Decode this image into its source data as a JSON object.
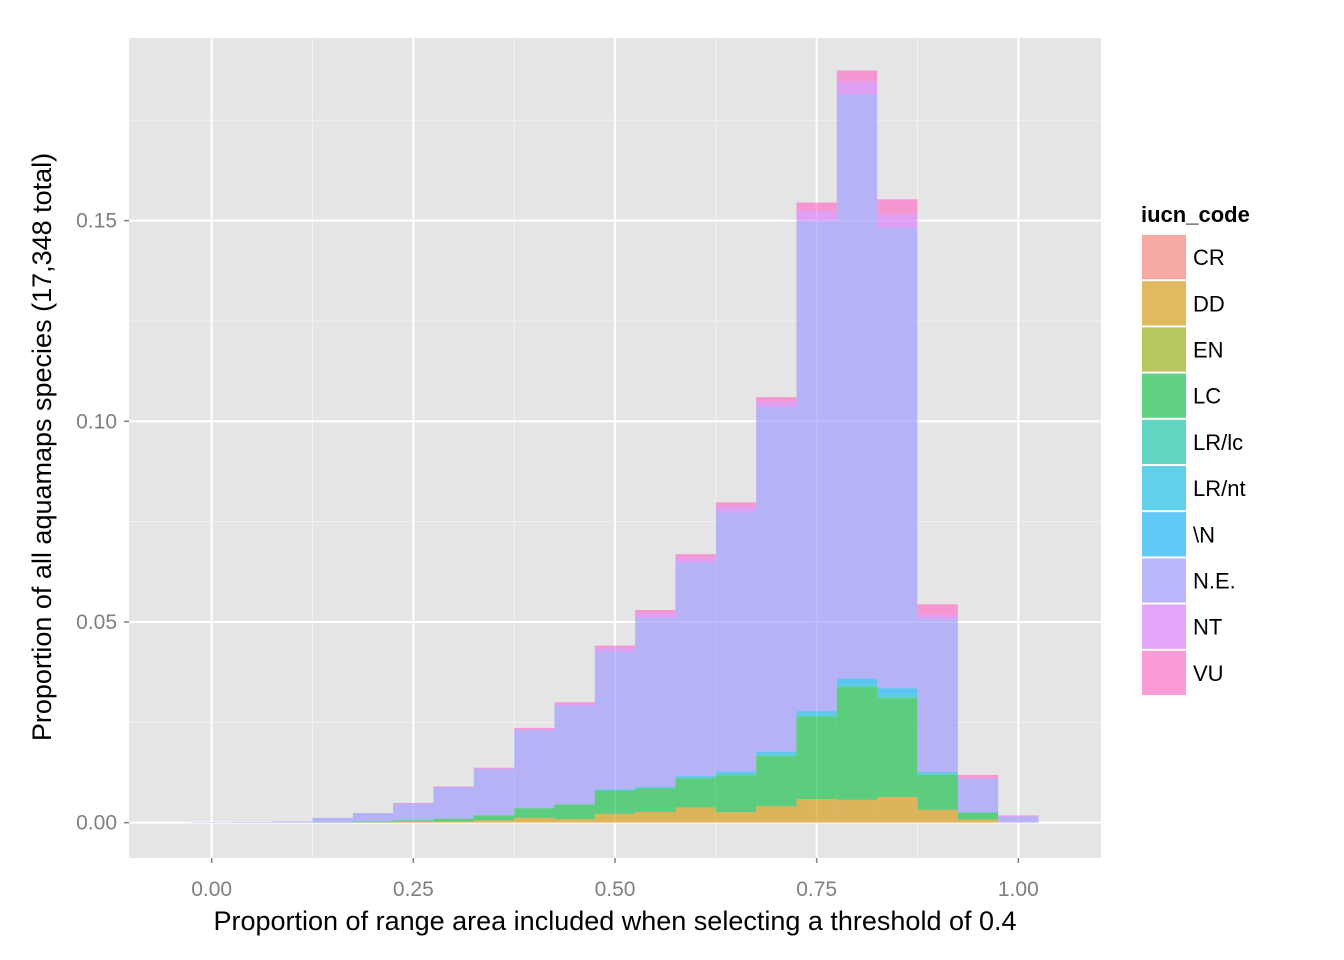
{
  "chart_data": {
    "type": "bar",
    "stacked": true,
    "histogram": true,
    "title": "",
    "xlabel": "Proportion of range area included when selecting a threshold of 0.4",
    "ylabel": "Proportion of all aquamaps species (17,348 total)",
    "xlim": [
      -0.1025,
      1.1025
    ],
    "ylim": [
      -0.0088,
      0.1955
    ],
    "x_ticks": [
      0.0,
      0.25,
      0.5,
      0.75,
      1.0
    ],
    "x_tick_labels": [
      "0.00",
      "0.25",
      "0.50",
      "0.75",
      "1.00"
    ],
    "y_ticks": [
      0.0,
      0.05,
      0.1,
      0.15
    ],
    "y_tick_labels": [
      "0.00",
      "0.05",
      "0.10",
      "0.15"
    ],
    "grid": true,
    "legend_position": "right",
    "legend_title": "iucn_code",
    "bin_width": 0.05,
    "x": [
      0.0,
      0.05,
      0.1,
      0.15,
      0.2,
      0.25,
      0.3,
      0.35,
      0.4,
      0.45,
      0.5,
      0.55,
      0.6,
      0.65,
      0.7,
      0.75,
      0.8,
      0.85,
      0.9,
      0.95,
      1.0
    ],
    "series": [
      {
        "name": "CR",
        "color": "#F8766D",
        "values": [
          0,
          0,
          0,
          0,
          0,
          0,
          0,
          0,
          0,
          0,
          0,
          0,
          0,
          0,
          0,
          0,
          0,
          0,
          0,
          0,
          0
        ]
      },
      {
        "name": "DD",
        "color": "#D39200",
        "values": [
          0,
          0,
          0,
          0,
          0.0001,
          0.0002,
          0.0003,
          0.0006,
          0.0012,
          0.0009,
          0.0022,
          0.0027,
          0.0038,
          0.0026,
          0.0041,
          0.0059,
          0.0057,
          0.0064,
          0.0032,
          0.0008,
          0
        ]
      },
      {
        "name": "EN",
        "color": "#93AA00",
        "values": [
          0,
          0,
          0,
          0,
          0,
          0,
          0,
          0,
          0,
          0,
          0,
          0,
          0,
          0,
          0,
          0,
          0,
          0,
          0,
          0,
          0
        ]
      },
      {
        "name": "LC",
        "color": "#00BA38",
        "values": [
          0,
          0,
          0,
          0.0001,
          0.0002,
          0.0004,
          0.0007,
          0.0012,
          0.0024,
          0.0036,
          0.0057,
          0.0058,
          0.0072,
          0.0092,
          0.0125,
          0.0205,
          0.028,
          0.0246,
          0.0087,
          0.0017,
          0
        ]
      },
      {
        "name": "LR/lc",
        "color": "#00C19F",
        "values": [
          0,
          0,
          0,
          0,
          0,
          0,
          0,
          0,
          0,
          0.0001,
          0.0001,
          0.0001,
          0.0001,
          0.0002,
          0.0002,
          0.0003,
          0.0004,
          0.0004,
          0.0002,
          0,
          0
        ]
      },
      {
        "name": "LR/nt",
        "color": "#00B9E3",
        "values": [
          0,
          0,
          0,
          0,
          0,
          0,
          0,
          0,
          0,
          0,
          0.0002,
          0.0002,
          0.0003,
          0.0004,
          0.0005,
          0.0006,
          0.0007,
          0.0008,
          0.0003,
          0.0001,
          0
        ]
      },
      {
        "name": "\\N",
        "color": "#00ADFA",
        "values": [
          0,
          0,
          0,
          0,
          0,
          0,
          0,
          0,
          0,
          0,
          0.0001,
          0.0001,
          0.0002,
          0.0003,
          0.0004,
          0.0005,
          0.0011,
          0.0013,
          0.0002,
          0,
          0
        ]
      },
      {
        "name": "N.E.",
        "color": "#9590FF",
        "values": [
          0.0001,
          0.0002,
          0.0003,
          0.0011,
          0.0021,
          0.0041,
          0.0078,
          0.0115,
          0.0194,
          0.0245,
          0.0343,
          0.0422,
          0.0532,
          0.0646,
          0.0858,
          0.1222,
          0.1456,
          0.1148,
          0.0381,
          0.0083,
          0.0015
        ]
      },
      {
        "name": "NT",
        "color": "#DB72FB",
        "values": [
          0,
          0,
          0,
          0,
          0,
          0.0001,
          0.0001,
          0.0002,
          0.0003,
          0.0005,
          0.0009,
          0.0011,
          0.0012,
          0.0015,
          0.0014,
          0.0024,
          0.0032,
          0.0033,
          0.0011,
          0.0003,
          0.0001
        ]
      },
      {
        "name": "VU",
        "color": "#FF61C3",
        "values": [
          0,
          0,
          0,
          0,
          0,
          0.0001,
          0.0001,
          0.0002,
          0.0003,
          0.0004,
          0.0006,
          0.0008,
          0.0009,
          0.001,
          0.0011,
          0.0021,
          0.0027,
          0.0037,
          0.0026,
          0.0007,
          0.0002
        ]
      }
    ]
  }
}
